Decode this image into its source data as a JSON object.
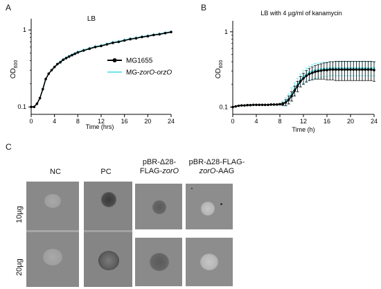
{
  "panels": {
    "a": "A",
    "b": "B",
    "c": "C"
  },
  "chart_data": [
    {
      "type": "line",
      "panel": "A",
      "title": "LB",
      "xlabel": "Time (hrs)",
      "ylabel": "OD600",
      "ylabel_main": "OD",
      "ylabel_sub": "600",
      "yscale": "log",
      "xlim": [
        0,
        24
      ],
      "ylim": [
        0.08,
        1.4
      ],
      "xticks": [
        0,
        4,
        8,
        12,
        16,
        20,
        24
      ],
      "yticks": [
        0.1,
        1
      ],
      "ytick_labels": [
        "0.1",
        "1"
      ],
      "legend_position": "right",
      "series": [
        {
          "name": "MG1655",
          "color": "#000000",
          "x": [
            0,
            0.5,
            1,
            1.5,
            2,
            2.5,
            3,
            3.5,
            4,
            4.5,
            5,
            5.5,
            6,
            6.5,
            7,
            7.5,
            8,
            9,
            10,
            11,
            12,
            13,
            14,
            15,
            16,
            17,
            18,
            19,
            20,
            21,
            22,
            23,
            24
          ],
          "y": [
            0.1,
            0.1,
            0.11,
            0.13,
            0.17,
            0.23,
            0.27,
            0.3,
            0.33,
            0.36,
            0.38,
            0.41,
            0.43,
            0.45,
            0.47,
            0.49,
            0.51,
            0.54,
            0.57,
            0.6,
            0.62,
            0.65,
            0.68,
            0.7,
            0.73,
            0.76,
            0.78,
            0.81,
            0.83,
            0.86,
            0.88,
            0.91,
            0.94
          ]
        },
        {
          "name": "MG-zorO-orzO",
          "name_prefix": "MG-",
          "name_italic": "zorO-orzO",
          "color": "#6ee6f0",
          "x": [
            0,
            0.5,
            1,
            1.5,
            2,
            2.5,
            3,
            3.5,
            4,
            4.5,
            5,
            5.5,
            6,
            6.5,
            7,
            7.5,
            8,
            9,
            10,
            11,
            12,
            13,
            14,
            15,
            16,
            17,
            18,
            19,
            20,
            21,
            22,
            23,
            24
          ],
          "y": [
            0.1,
            0.1,
            0.11,
            0.13,
            0.17,
            0.23,
            0.27,
            0.3,
            0.33,
            0.36,
            0.39,
            0.41,
            0.44,
            0.46,
            0.48,
            0.5,
            0.52,
            0.55,
            0.58,
            0.61,
            0.63,
            0.66,
            0.69,
            0.71,
            0.74,
            0.77,
            0.79,
            0.82,
            0.84,
            0.87,
            0.89,
            0.92,
            0.95
          ]
        }
      ]
    },
    {
      "type": "line",
      "panel": "B",
      "title": "LB with 4 µg/ml of kanamycin",
      "xlabel": "Time (h)",
      "ylabel": "OD600",
      "ylabel_main": "OD",
      "ylabel_sub": "600",
      "yscale": "log",
      "xlim": [
        0,
        24
      ],
      "ylim": [
        0.08,
        1.4
      ],
      "xticks": [
        0,
        4,
        8,
        12,
        16,
        20,
        24
      ],
      "yticks": [
        0.1,
        1
      ],
      "ytick_labels": [
        "0.1",
        "1"
      ],
      "series": [
        {
          "name": "MG1655",
          "color": "#000000",
          "x": [
            0,
            0.5,
            1,
            1.5,
            2,
            2.5,
            3,
            3.5,
            4,
            4.5,
            5,
            5.5,
            6,
            6.5,
            7,
            7.5,
            8,
            8.5,
            9,
            9.5,
            10,
            10.5,
            11,
            11.5,
            12,
            12.5,
            13,
            13.5,
            14,
            14.5,
            15,
            15.5,
            16,
            16.5,
            17,
            17.5,
            18,
            18.5,
            19,
            19.5,
            20,
            20.5,
            21,
            21.5,
            22,
            22.5,
            23,
            23.5,
            24
          ],
          "y": [
            0.1,
            0.102,
            0.104,
            0.105,
            0.105,
            0.106,
            0.106,
            0.107,
            0.107,
            0.107,
            0.107,
            0.107,
            0.107,
            0.108,
            0.108,
            0.108,
            0.109,
            0.11,
            0.115,
            0.125,
            0.14,
            0.165,
            0.19,
            0.22,
            0.24,
            0.26,
            0.275,
            0.285,
            0.295,
            0.3,
            0.305,
            0.31,
            0.31,
            0.315,
            0.315,
            0.315,
            0.315,
            0.315,
            0.315,
            0.315,
            0.315,
            0.315,
            0.315,
            0.315,
            0.315,
            0.315,
            0.315,
            0.315,
            0.31
          ],
          "err": [
            0,
            0,
            0,
            0,
            0,
            0,
            0,
            0,
            0,
            0,
            0,
            0,
            0,
            0,
            0,
            0,
            0.002,
            0.005,
            0.01,
            0.015,
            0.02,
            0.025,
            0.03,
            0.035,
            0.04,
            0.045,
            0.05,
            0.055,
            0.06,
            0.065,
            0.07,
            0.075,
            0.08,
            0.085,
            0.085,
            0.09,
            0.09,
            0.09,
            0.09,
            0.09,
            0.09,
            0.09,
            0.09,
            0.09,
            0.09,
            0.09,
            0.09,
            0.09,
            0.09
          ]
        },
        {
          "name": "MG-zorO-orzO",
          "color": "#6ee6f0",
          "x": [
            0,
            0.5,
            1,
            1.5,
            2,
            2.5,
            3,
            3.5,
            4,
            4.5,
            5,
            5.5,
            6,
            6.5,
            7,
            7.5,
            8,
            8.5,
            9,
            9.5,
            10,
            10.5,
            11,
            11.5,
            12,
            12.5,
            13,
            13.5,
            14,
            14.5,
            15,
            15.5,
            16,
            16.5,
            17,
            17.5,
            18,
            18.5,
            19,
            19.5,
            20,
            20.5,
            21,
            21.5,
            22,
            22.5,
            23,
            23.5,
            24
          ],
          "y": [
            0.1,
            0.102,
            0.104,
            0.105,
            0.105,
            0.106,
            0.106,
            0.107,
            0.107,
            0.107,
            0.107,
            0.107,
            0.107,
            0.108,
            0.108,
            0.108,
            0.109,
            0.112,
            0.118,
            0.13,
            0.15,
            0.175,
            0.2,
            0.23,
            0.255,
            0.275,
            0.29,
            0.3,
            0.31,
            0.315,
            0.32,
            0.325,
            0.325,
            0.33,
            0.33,
            0.33,
            0.33,
            0.33,
            0.33,
            0.33,
            0.33,
            0.33,
            0.33,
            0.33,
            0.33,
            0.33,
            0.33,
            0.33,
            0.33
          ],
          "err": [
            0,
            0,
            0,
            0,
            0,
            0,
            0,
            0,
            0,
            0,
            0,
            0,
            0,
            0,
            0,
            0,
            0.003,
            0.008,
            0.015,
            0.02,
            0.03,
            0.035,
            0.04,
            0.045,
            0.05,
            0.055,
            0.06,
            0.065,
            0.07,
            0.07,
            0.07,
            0.07,
            0.07,
            0.07,
            0.07,
            0.07,
            0.07,
            0.07,
            0.07,
            0.07,
            0.07,
            0.07,
            0.07,
            0.07,
            0.07,
            0.07,
            0.07,
            0.07,
            0.07
          ]
        }
      ]
    }
  ],
  "blot": {
    "headers": {
      "nc": "NC",
      "pc": "PC",
      "wt": {
        "line1": "pBR-Δ28-",
        "line2_prefix": "FLAG-",
        "line2_italic": "zorO"
      },
      "mut": {
        "line1": "pBR-Δ28-FLAG-",
        "line2_italic": "zorO",
        "line2_suffix": "-AAG"
      }
    },
    "rows": [
      "10µg",
      "20µg"
    ]
  }
}
